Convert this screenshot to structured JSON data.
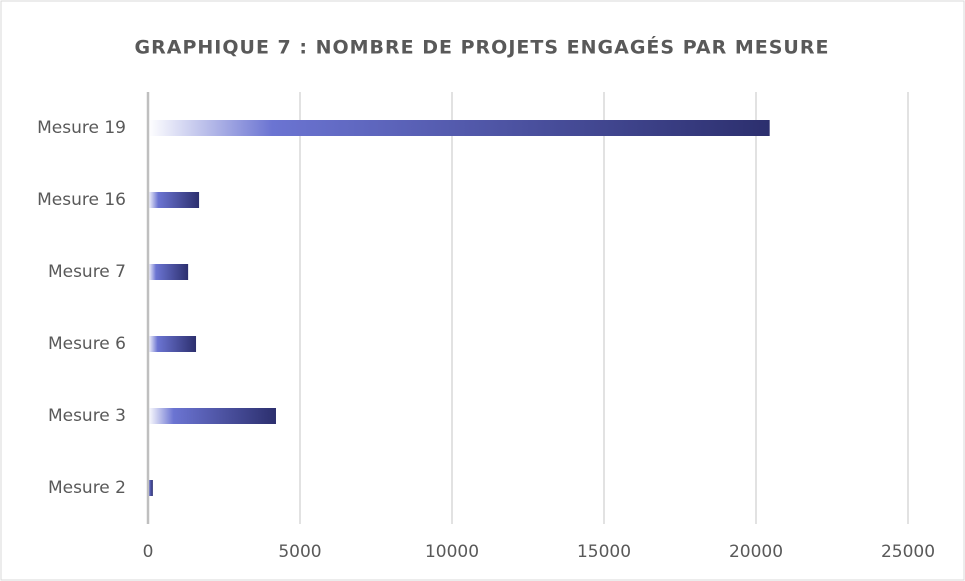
{
  "chart_data": {
    "type": "bar",
    "orientation": "horizontal",
    "title": "GRAPHIQUE 7 : NOMBRE DE PROJETS ENGAGÉS PAR MESURE",
    "categories": [
      "Mesure 19",
      "Mesure 16",
      "Mesure 7",
      "Mesure 6",
      "Mesure 3",
      "Mesure 2"
    ],
    "values": [
      20450,
      1680,
      1320,
      1580,
      4210,
      160
    ],
    "color": "#2c2f6e",
    "xlim": [
      0,
      25000
    ],
    "xticks": [
      0,
      5000,
      10000,
      15000,
      20000,
      25000
    ],
    "grid": true
  }
}
